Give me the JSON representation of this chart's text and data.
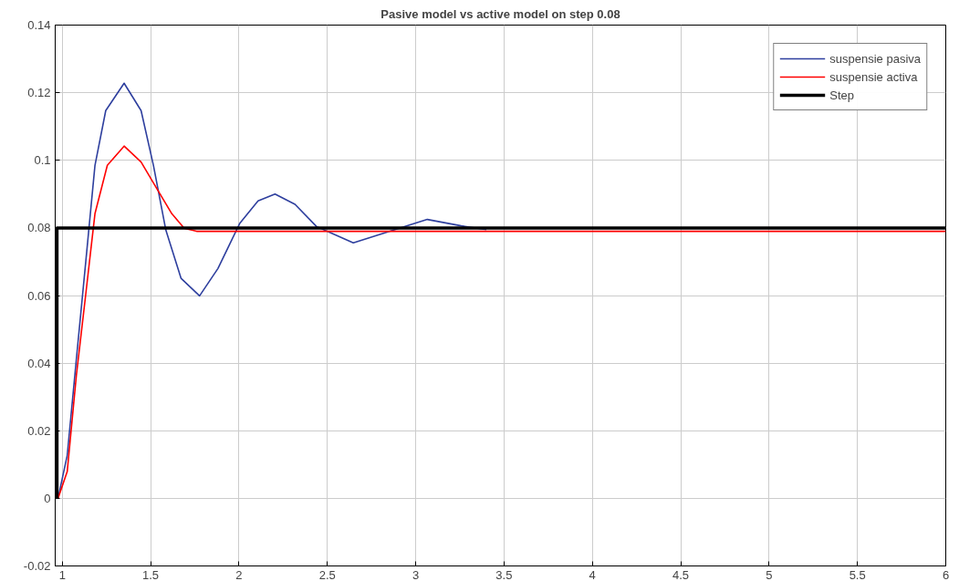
{
  "chart_data": {
    "type": "line",
    "title": "Pasive model vs active model on step 0.08",
    "xlim": [
      0.96,
      6
    ],
    "ylim": [
      -0.02,
      0.14
    ],
    "xticks": [
      1,
      1.5,
      2,
      2.5,
      3,
      3.5,
      4,
      4.5,
      5,
      5.5,
      6
    ],
    "yticks": [
      -0.02,
      0,
      0.02,
      0.04,
      0.06,
      0.08,
      0.1,
      0.12,
      0.14
    ],
    "grid": true,
    "legend": "top right",
    "marker": "none",
    "line_style": "solid",
    "series": [
      {
        "name": "suspensie pasiva",
        "color": "#2e3f9e",
        "x": [
          0.976,
          1.028,
          1.08,
          1.133,
          1.185,
          1.246,
          1.35,
          1.446,
          1.516,
          1.586,
          1.672,
          1.777,
          1.881,
          2.004,
          2.108,
          2.204,
          2.317,
          2.439,
          2.647,
          2.822,
          3.066,
          3.258,
          3.4
        ],
        "values": [
          0,
          0.0127,
          0.0413,
          0.07,
          0.0985,
          0.1147,
          0.1228,
          0.1147,
          0.0985,
          0.0794,
          0.0651,
          0.0599,
          0.068,
          0.0813,
          0.088,
          0.09,
          0.087,
          0.0804,
          0.0756,
          0.0785,
          0.0825,
          0.0806,
          0.0795
        ]
      },
      {
        "name": "suspensie activa",
        "color": "#ff0000",
        "x": [
          0.976,
          1.028,
          1.08,
          1.133,
          1.185,
          1.255,
          1.35,
          1.446,
          1.533,
          1.62,
          1.69,
          1.76,
          2,
          3,
          4,
          5,
          6
        ],
        "values": [
          0,
          0.0079,
          0.0365,
          0.0604,
          0.0842,
          0.0985,
          0.1042,
          0.0995,
          0.0918,
          0.0842,
          0.0799,
          0.079,
          0.079,
          0.079,
          0.079,
          0.079,
          0.079
        ]
      },
      {
        "name": "Step",
        "type": "step",
        "color": "#000000",
        "x": [
          0.97,
          0.97,
          6
        ],
        "values": [
          0,
          0.08,
          0.08
        ]
      }
    ]
  }
}
